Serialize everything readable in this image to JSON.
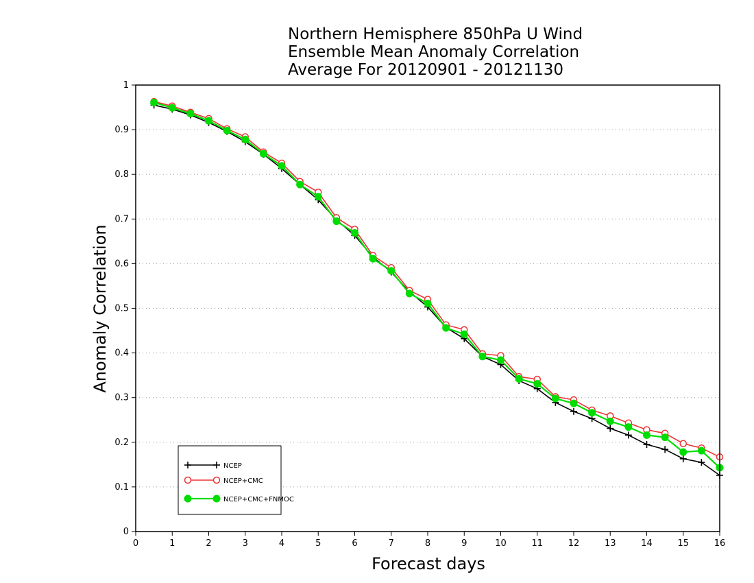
{
  "chart_data": {
    "type": "line",
    "title_lines": [
      "Northern Hemisphere 850hPa U Wind",
      "Ensemble Mean Anomaly Correlation",
      "Average For 20120901 - 20121130"
    ],
    "xlabel": "Forecast days",
    "ylabel": "Anomaly Correlation",
    "xlim": [
      0,
      16
    ],
    "ylim": [
      0,
      1
    ],
    "x_ticks": [
      "0",
      "1",
      "2",
      "3",
      "4",
      "5",
      "6",
      "7",
      "8",
      "9",
      "10",
      "11",
      "12",
      "13",
      "14",
      "15",
      "16"
    ],
    "y_ticks": [
      "0",
      "0.1",
      "0.2",
      "0.3",
      "0.4",
      "0.5",
      "0.6",
      "0.7",
      "0.8",
      "0.9",
      "1"
    ],
    "grid": "horizontal-dotted",
    "legend_placement": "bottom-left",
    "x": [
      0.5,
      1,
      1.5,
      2,
      2.5,
      3,
      3.5,
      4,
      4.5,
      5,
      5.5,
      6,
      6.5,
      7,
      7.5,
      8,
      8.5,
      9,
      9.5,
      10,
      10.5,
      11,
      11.5,
      12,
      12.5,
      13,
      13.5,
      14,
      14.5,
      15,
      15.5,
      16
    ],
    "series": [
      {
        "name": "NCEP",
        "color": "#000000",
        "marker": "plus",
        "values": [
          0.955,
          0.946,
          0.933,
          0.916,
          0.896,
          0.873,
          0.845,
          0.813,
          0.777,
          0.743,
          0.698,
          0.663,
          0.615,
          0.581,
          0.537,
          0.503,
          0.457,
          0.432,
          0.392,
          0.374,
          0.338,
          0.32,
          0.289,
          0.269,
          0.253,
          0.231,
          0.216,
          0.195,
          0.184,
          0.163,
          0.155,
          0.126
        ]
      },
      {
        "name": "NCEP+CMC",
        "color": "#ee3333",
        "marker": "open-circle",
        "values": [
          0.963,
          0.953,
          0.939,
          0.925,
          0.902,
          0.884,
          0.85,
          0.825,
          0.784,
          0.76,
          0.703,
          0.677,
          0.618,
          0.591,
          0.54,
          0.52,
          0.463,
          0.452,
          0.398,
          0.394,
          0.347,
          0.341,
          0.302,
          0.295,
          0.272,
          0.259,
          0.243,
          0.228,
          0.22,
          0.197,
          0.187,
          0.167
        ]
      },
      {
        "name": "NCEP+CMC+FNMOC",
        "color": "#00dd00",
        "marker": "filled-circle",
        "values": [
          0.961,
          0.949,
          0.936,
          0.92,
          0.898,
          0.878,
          0.846,
          0.819,
          0.777,
          0.75,
          0.695,
          0.669,
          0.611,
          0.584,
          0.533,
          0.511,
          0.456,
          0.442,
          0.392,
          0.384,
          0.342,
          0.331,
          0.298,
          0.287,
          0.266,
          0.247,
          0.234,
          0.216,
          0.211,
          0.178,
          0.181,
          0.143
        ]
      }
    ]
  }
}
